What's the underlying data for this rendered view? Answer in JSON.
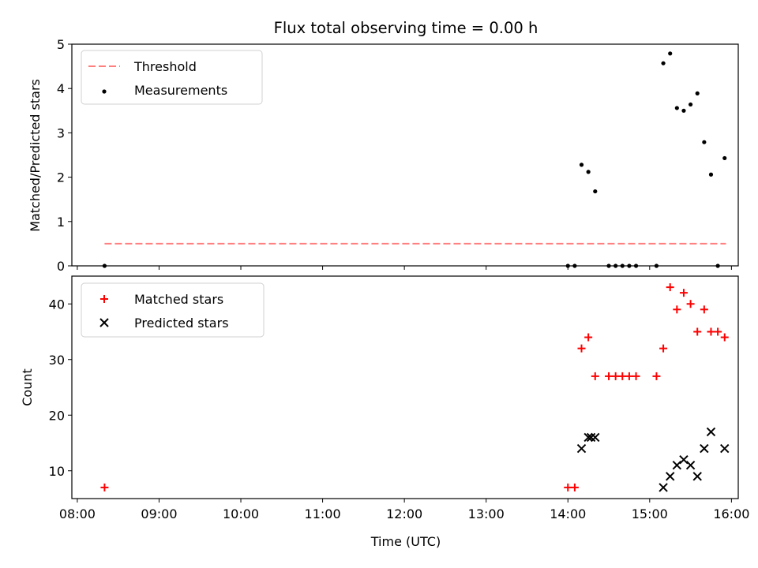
{
  "chart_data": [
    {
      "type": "scatter",
      "title": "Flux total observing time = 0.00 h",
      "ylabel": "Matched/Predicted stars",
      "xlabel": "",
      "xlim": [
        "08:00",
        "16:00"
      ],
      "ylim": [
        0,
        5
      ],
      "yticks": [
        0,
        1,
        2,
        3,
        4,
        5
      ],
      "legend_position": "top-left",
      "series": [
        {
          "name": "Threshold",
          "kind": "dashed-line",
          "color": "#ff7f7f",
          "x": [
            "08:20",
            "15:56"
          ],
          "y": [
            0.5,
            0.5
          ]
        },
        {
          "name": "Measurements",
          "kind": "points",
          "color": "#000000",
          "x": [
            "08:20",
            "14:00",
            "14:05",
            "14:10",
            "14:15",
            "14:20",
            "14:30",
            "14:35",
            "14:40",
            "14:45",
            "14:50",
            "15:05",
            "15:10",
            "15:15",
            "15:20",
            "15:25",
            "15:30",
            "15:35",
            "15:40",
            "15:45",
            "15:50",
            "15:55"
          ],
          "y": [
            0,
            0,
            0,
            2.28,
            2.12,
            1.68,
            0,
            0,
            0,
            0,
            0,
            0,
            4.57,
            4.79,
            3.56,
            3.5,
            3.64,
            3.89,
            2.79,
            2.06,
            0,
            2.43
          ]
        }
      ]
    },
    {
      "type": "scatter",
      "xlabel": "Time (UTC)",
      "ylabel": "Count",
      "xlim": [
        "08:00",
        "16:00"
      ],
      "ylim": [
        5,
        45
      ],
      "xticks": [
        "08:00",
        "09:00",
        "10:00",
        "11:00",
        "12:00",
        "13:00",
        "14:00",
        "15:00",
        "16:00"
      ],
      "yticks": [
        10,
        20,
        30,
        40
      ],
      "legend_position": "top-left",
      "series": [
        {
          "name": "Matched stars",
          "marker": "plus",
          "color": "#ff0000",
          "x": [
            "08:20",
            "14:00",
            "14:05",
            "14:10",
            "14:15",
            "14:20",
            "14:30",
            "14:35",
            "14:40",
            "14:45",
            "14:50",
            "15:05",
            "15:10",
            "15:15",
            "15:20",
            "15:25",
            "15:30",
            "15:35",
            "15:40",
            "15:45",
            "15:50",
            "15:55"
          ],
          "y": [
            7,
            7,
            7,
            32,
            34,
            27,
            27,
            27,
            27,
            27,
            27,
            27,
            32,
            43,
            39,
            42,
            40,
            35,
            39,
            35,
            35,
            34
          ]
        },
        {
          "name": "Predicted stars",
          "marker": "x",
          "color": "#000000",
          "x": [
            "14:10",
            "14:15",
            "14:17",
            "14:20",
            "15:10",
            "15:15",
            "15:20",
            "15:25",
            "15:30",
            "15:35",
            "15:40",
            "15:45",
            "15:55"
          ],
          "y": [
            14,
            16,
            16,
            16,
            7,
            9,
            11,
            12,
            11,
            9,
            14,
            17,
            14
          ]
        }
      ]
    }
  ]
}
